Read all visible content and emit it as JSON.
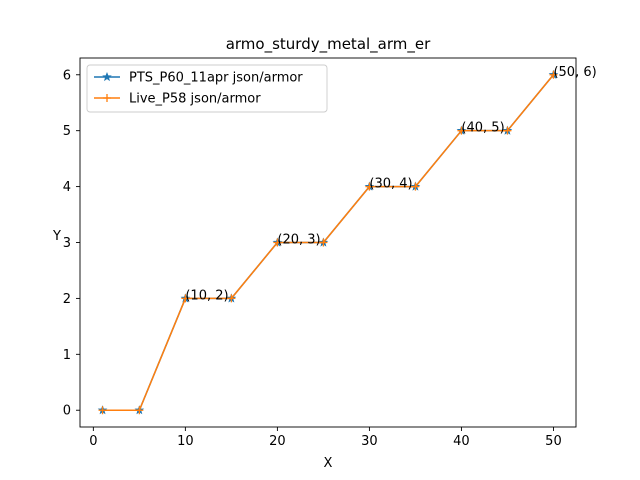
{
  "chart_data": {
    "type": "line",
    "title": "armo_sturdy_metal_arm_er",
    "xlabel": "X",
    "ylabel": "Y",
    "xlim": [
      -1.45,
      52.45
    ],
    "ylim": [
      -0.3,
      6.3
    ],
    "xticks": [
      0,
      10,
      20,
      30,
      40,
      50
    ],
    "yticks": [
      0,
      1,
      2,
      3,
      4,
      5,
      6
    ],
    "grid": false,
    "legend_position": "upper-left",
    "series": [
      {
        "name": "PTS_P60_11apr json/armor",
        "color": "#1f77b4",
        "marker": "star",
        "x": [
          1,
          5,
          10,
          15,
          20,
          25,
          30,
          35,
          40,
          45,
          50
        ],
        "y": [
          0,
          0,
          2,
          2,
          3,
          3,
          4,
          4,
          5,
          5,
          6
        ]
      },
      {
        "name": "Live_P58 json/armor",
        "color": "#ff7f0e",
        "marker": "plus",
        "x": [
          1,
          5,
          10,
          15,
          20,
          25,
          30,
          35,
          40,
          45,
          50
        ],
        "y": [
          0,
          0,
          2,
          2,
          3,
          3,
          4,
          4,
          5,
          5,
          6
        ]
      }
    ],
    "annotations": [
      {
        "text": "(10, 2)",
        "x": 10,
        "y": 2
      },
      {
        "text": "(20, 3)",
        "x": 20,
        "y": 3
      },
      {
        "text": "(30, 4)",
        "x": 30,
        "y": 4
      },
      {
        "text": "(40, 5)",
        "x": 40,
        "y": 5
      },
      {
        "text": "(50, 6)",
        "x": 50,
        "y": 6
      }
    ]
  }
}
